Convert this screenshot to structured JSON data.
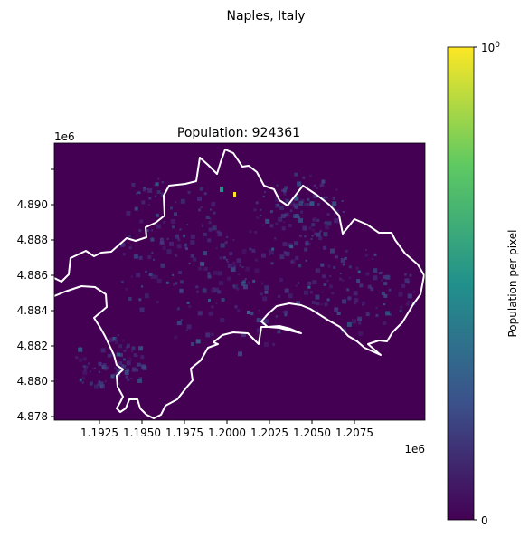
{
  "figure": {
    "suptitle": "Naples, Italy"
  },
  "map": {
    "title": "Population: 924361",
    "x_axis": {
      "ticks": [
        "1.1925",
        "1.1950",
        "1.1975",
        "1.2000",
        "1.2025",
        "1.2050",
        "1.2075"
      ],
      "offset_label": "1e6"
    },
    "y_axis": {
      "ticks": [
        "4.878",
        "4.880",
        "4.882",
        "4.884",
        "4.886",
        "4.888",
        "4.890"
      ],
      "offset_label": "1e6"
    },
    "background_color": "#440154",
    "boundary_color": "#ffffff"
  },
  "colorbar": {
    "label": "Population per pixel",
    "min_label": "0",
    "max_label_base": "10",
    "max_label_exp": "0",
    "colormap": "viridis",
    "colors": [
      "#440154",
      "#3b528b",
      "#21918c",
      "#5ec962",
      "#fde725"
    ]
  }
}
